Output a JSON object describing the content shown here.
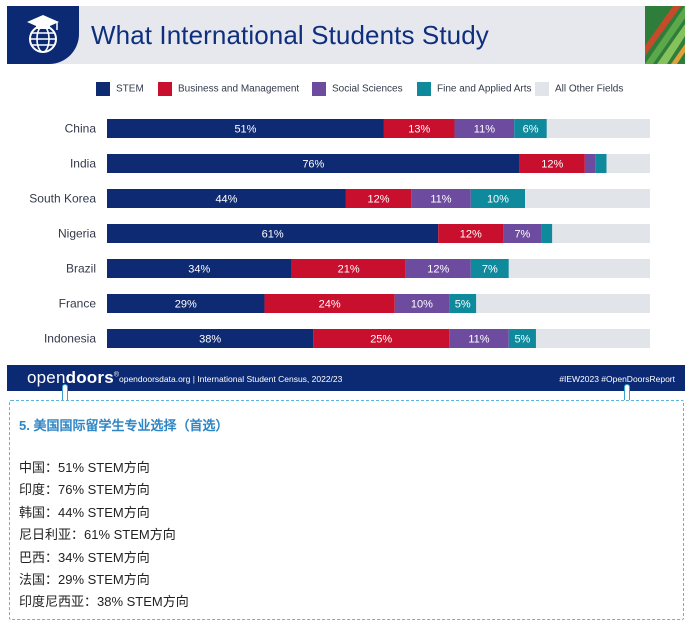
{
  "header": {
    "title": "What International Students Study"
  },
  "legend": [
    {
      "label": "STEM",
      "color": "#0e2a72"
    },
    {
      "label": "Business and Management",
      "color": "#c8102e"
    },
    {
      "label": "Social Sciences",
      "color": "#6d4c9f"
    },
    {
      "label": "Fine and Applied Arts",
      "color": "#0f8a9d"
    },
    {
      "label": "All Other Fields",
      "color": "#e1e4e9"
    }
  ],
  "chart_data": {
    "type": "bar",
    "orientation": "horizontal",
    "stacked": true,
    "categories": [
      "China",
      "India",
      "South Korea",
      "Nigeria",
      "Brazil",
      "France",
      "Indonesia"
    ],
    "series": [
      {
        "name": "STEM",
        "values": [
          51,
          76,
          44,
          61,
          34,
          29,
          38
        ],
        "labels": [
          "51%",
          "76%",
          "44%",
          "61%",
          "34%",
          "29%",
          "38%"
        ]
      },
      {
        "name": "Business and Management",
        "values": [
          13,
          12,
          12,
          12,
          21,
          24,
          25
        ],
        "labels": [
          "13%",
          "12%",
          "12%",
          "12%",
          "21%",
          "24%",
          "25%"
        ]
      },
      {
        "name": "Social Sciences",
        "values": [
          11,
          2,
          11,
          7,
          12,
          10,
          11
        ],
        "labels": [
          "11%",
          "",
          "11%",
          "7%",
          "12%",
          "10%",
          "11%"
        ]
      },
      {
        "name": "Fine and Applied Arts",
        "values": [
          6,
          2,
          10,
          2,
          7,
          5,
          5
        ],
        "labels": [
          "6%",
          "",
          "10%",
          "",
          "7%",
          "5%",
          "5%"
        ]
      },
      {
        "name": "All Other Fields",
        "values": [
          19,
          8,
          23,
          18,
          26,
          32,
          21
        ],
        "labels": [
          "",
          "",
          "",
          "",
          "",
          "",
          ""
        ]
      }
    ],
    "xlim": [
      0,
      100
    ],
    "grid": false,
    "legend_position": "top"
  },
  "footer": {
    "brand_regular": "open",
    "brand_bold": "doors",
    "brand_mark": "®",
    "source": "opendoorsdata.org  |  International Student Census, 2022/23",
    "tags": "#IEW2023  #OpenDoorsReport"
  },
  "note": {
    "title": "5. 美国国际留学生专业选择（首选）",
    "lines": [
      "中国：51% STEM方向",
      "印度：76% STEM方向",
      "韩国：44% STEM方向",
      "尼日利亚：61% STEM方向",
      "巴西：34% STEM方向",
      "法国：29% STEM方向",
      "印度尼西亚：38% STEM方向"
    ]
  }
}
